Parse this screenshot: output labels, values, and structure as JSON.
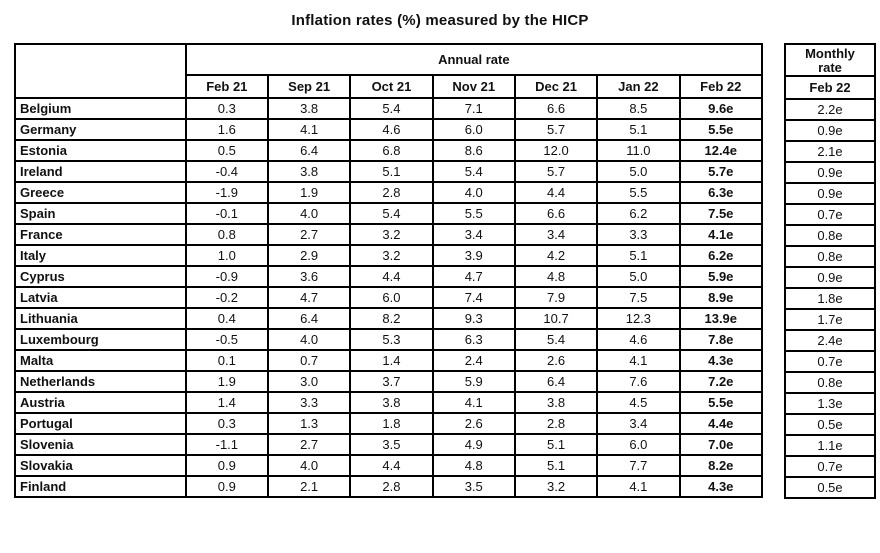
{
  "title": "Inflation rates (%) measured by the HICP",
  "chart_data": {
    "type": "table",
    "title": "Inflation rates (%) measured by the HICP",
    "unit": "%",
    "column_groups": [
      {
        "label": "Annual rate",
        "columns": [
          "Feb 21",
          "Sep 21",
          "Oct 21",
          "Nov 21",
          "Dec 21",
          "Jan 22",
          "Feb 22"
        ]
      },
      {
        "label": "Monthly rate",
        "columns": [
          "Feb 22"
        ]
      }
    ],
    "rows": [
      {
        "country": "Belgium",
        "annual": [
          "0.3",
          "3.8",
          "5.4",
          "7.1",
          "6.6",
          "8.5",
          "9.6e"
        ],
        "monthly": "2.2e"
      },
      {
        "country": "Germany",
        "annual": [
          "1.6",
          "4.1",
          "4.6",
          "6.0",
          "5.7",
          "5.1",
          "5.5e"
        ],
        "monthly": "0.9e"
      },
      {
        "country": "Estonia",
        "annual": [
          "0.5",
          "6.4",
          "6.8",
          "8.6",
          "12.0",
          "11.0",
          "12.4e"
        ],
        "monthly": "2.1e"
      },
      {
        "country": "Ireland",
        "annual": [
          "-0.4",
          "3.8",
          "5.1",
          "5.4",
          "5.7",
          "5.0",
          "5.7e"
        ],
        "monthly": "0.9e"
      },
      {
        "country": "Greece",
        "annual": [
          "-1.9",
          "1.9",
          "2.8",
          "4.0",
          "4.4",
          "5.5",
          "6.3e"
        ],
        "monthly": "0.9e"
      },
      {
        "country": "Spain",
        "annual": [
          "-0.1",
          "4.0",
          "5.4",
          "5.5",
          "6.6",
          "6.2",
          "7.5e"
        ],
        "monthly": "0.7e"
      },
      {
        "country": "France",
        "annual": [
          "0.8",
          "2.7",
          "3.2",
          "3.4",
          "3.4",
          "3.3",
          "4.1e"
        ],
        "monthly": "0.8e"
      },
      {
        "country": "Italy",
        "annual": [
          "1.0",
          "2.9",
          "3.2",
          "3.9",
          "4.2",
          "5.1",
          "6.2e"
        ],
        "monthly": "0.8e"
      },
      {
        "country": "Cyprus",
        "annual": [
          "-0.9",
          "3.6",
          "4.4",
          "4.7",
          "4.8",
          "5.0",
          "5.9e"
        ],
        "monthly": "0.9e"
      },
      {
        "country": "Latvia",
        "annual": [
          "-0.2",
          "4.7",
          "6.0",
          "7.4",
          "7.9",
          "7.5",
          "8.9e"
        ],
        "monthly": "1.8e"
      },
      {
        "country": "Lithuania",
        "annual": [
          "0.4",
          "6.4",
          "8.2",
          "9.3",
          "10.7",
          "12.3",
          "13.9e"
        ],
        "monthly": "1.7e"
      },
      {
        "country": "Luxembourg",
        "annual": [
          "-0.5",
          "4.0",
          "5.3",
          "6.3",
          "5.4",
          "4.6",
          "7.8e"
        ],
        "monthly": "2.4e"
      },
      {
        "country": "Malta",
        "annual": [
          "0.1",
          "0.7",
          "1.4",
          "2.4",
          "2.6",
          "4.1",
          "4.3e"
        ],
        "monthly": "0.7e"
      },
      {
        "country": "Netherlands",
        "annual": [
          "1.9",
          "3.0",
          "3.7",
          "5.9",
          "6.4",
          "7.6",
          "7.2e"
        ],
        "monthly": "0.8e"
      },
      {
        "country": "Austria",
        "annual": [
          "1.4",
          "3.3",
          "3.8",
          "4.1",
          "3.8",
          "4.5",
          "5.5e"
        ],
        "monthly": "1.3e"
      },
      {
        "country": "Portugal",
        "annual": [
          "0.3",
          "1.3",
          "1.8",
          "2.6",
          "2.8",
          "3.4",
          "4.4e"
        ],
        "monthly": "0.5e"
      },
      {
        "country": "Slovenia",
        "annual": [
          "-1.1",
          "2.7",
          "3.5",
          "4.9",
          "5.1",
          "6.0",
          "7.0e"
        ],
        "monthly": "1.1e"
      },
      {
        "country": "Slovakia",
        "annual": [
          "0.9",
          "4.0",
          "4.4",
          "4.8",
          "5.1",
          "7.7",
          "8.2e"
        ],
        "monthly": "0.7e"
      },
      {
        "country": "Finland",
        "annual": [
          "0.9",
          "2.1",
          "2.8",
          "3.5",
          "3.2",
          "4.1",
          "4.3e"
        ],
        "monthly": "0.5e"
      }
    ]
  },
  "colors": {
    "border": "#000000",
    "text": "#111111",
    "background": "#ffffff"
  }
}
